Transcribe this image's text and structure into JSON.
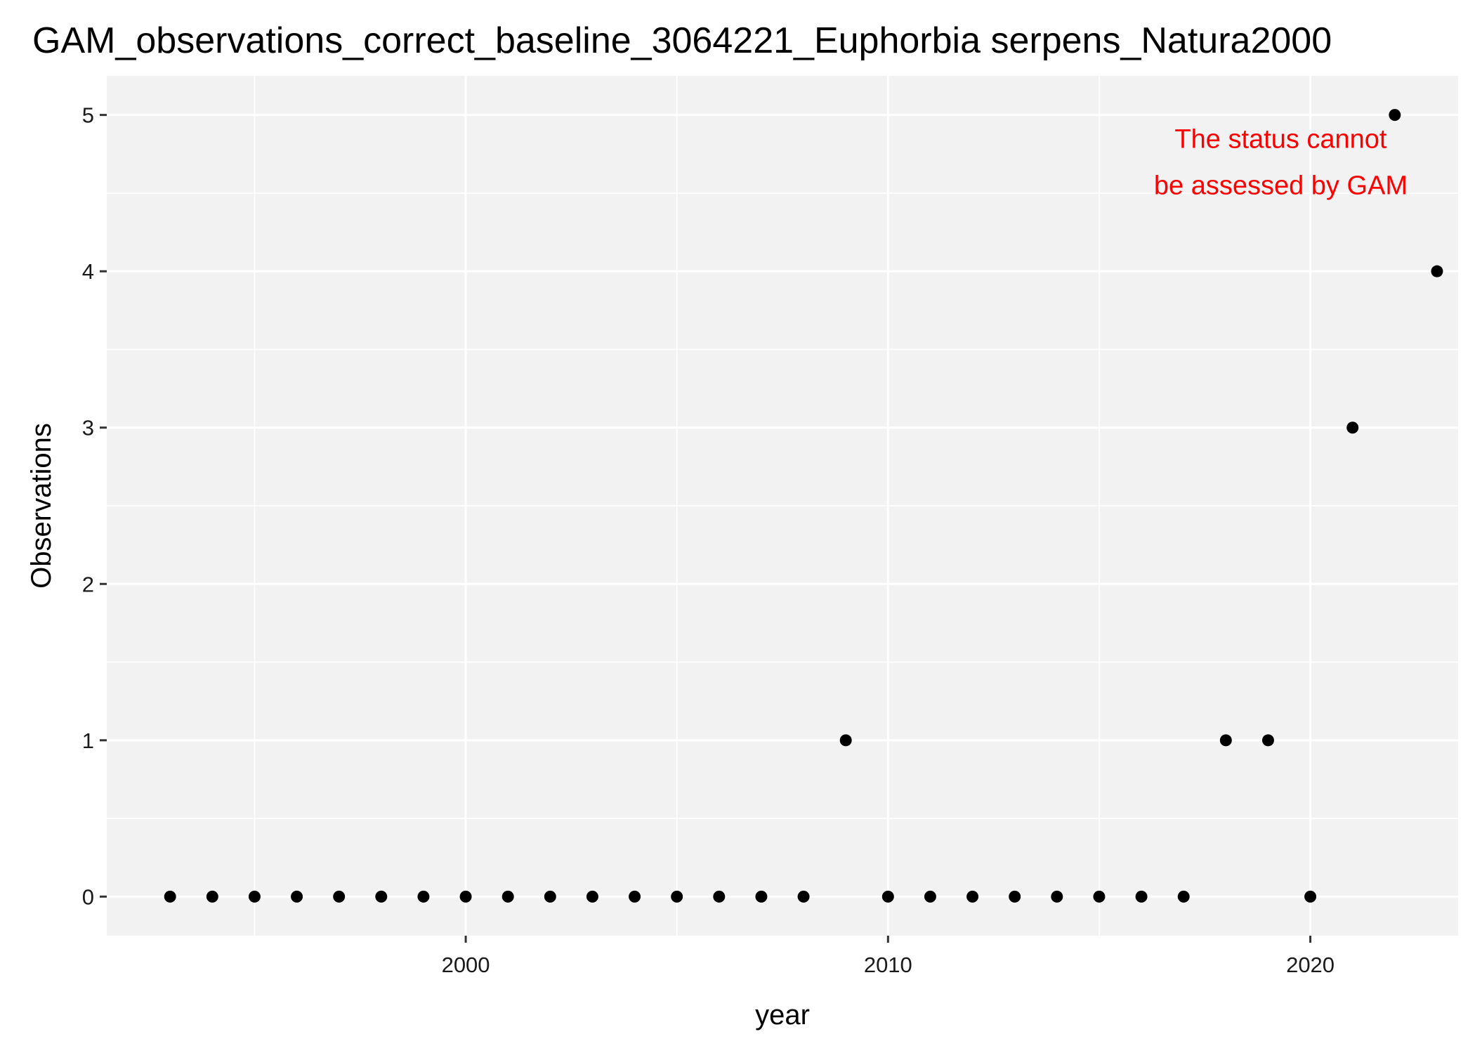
{
  "chart_data": {
    "type": "scatter",
    "title": "GAM_observations_correct_baseline_3064221_Euphorbia serpens_Natura2000",
    "xlabel": "year",
    "ylabel": "Observations",
    "xlim": [
      1991.5,
      2023.5
    ],
    "ylim": [
      -0.25,
      5.25
    ],
    "x_ticks": [
      2000,
      2010,
      2020
    ],
    "x_tick_labels": [
      "2000",
      "2010",
      "2020"
    ],
    "y_ticks": [
      0,
      1,
      2,
      3,
      4,
      5
    ],
    "y_tick_labels": [
      "0",
      "1",
      "2",
      "3",
      "4",
      "5"
    ],
    "grid": true,
    "background": "#f2f2f2",
    "grid_color": "#ffffff",
    "point_color": "#000000",
    "x": [
      1993,
      1994,
      1995,
      1996,
      1997,
      1998,
      1999,
      2000,
      2001,
      2002,
      2003,
      2004,
      2005,
      2006,
      2007,
      2008,
      2009,
      2010,
      2011,
      2012,
      2013,
      2014,
      2015,
      2016,
      2017,
      2018,
      2019,
      2020,
      2021,
      2022,
      2023
    ],
    "y": [
      0,
      0,
      0,
      0,
      0,
      0,
      0,
      0,
      0,
      0,
      0,
      0,
      0,
      0,
      0,
      0,
      1,
      0,
      0,
      0,
      0,
      0,
      0,
      0,
      0,
      1,
      1,
      0,
      3,
      5,
      4
    ],
    "annotation": {
      "lines": [
        "The status cannot",
        "be assessed by GAM"
      ],
      "color": "#ff0000",
      "x": 2019.3,
      "y": 4.7
    }
  }
}
